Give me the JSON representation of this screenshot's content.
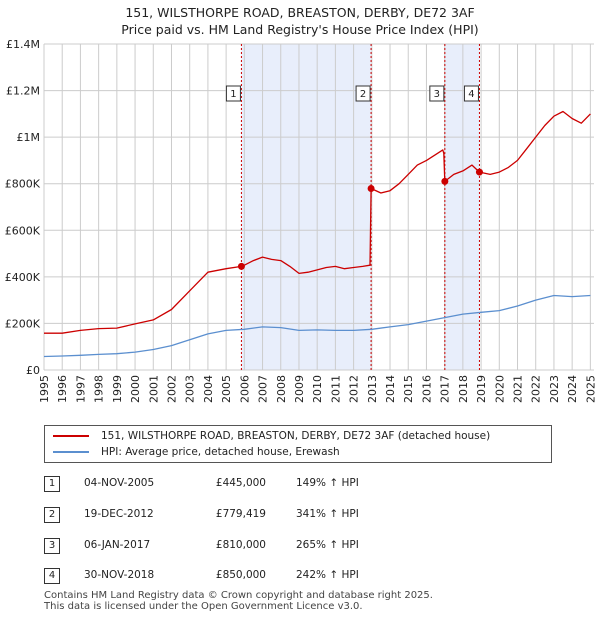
{
  "title": [
    "151, WILSTHORPE ROAD, BREASTON, DERBY, DE72 3AF",
    "Price paid vs. HM Land Registry's House Price Index (HPI)"
  ],
  "colors": {
    "property": "#cc0000",
    "hpi": "#5b8fcf",
    "shade": "#e8eefb",
    "grid": "#cccccc",
    "marker_line": "#cc0000"
  },
  "chart_data": {
    "type": "line",
    "xlim": [
      1995,
      2025.2
    ],
    "ylim": [
      0,
      1400000
    ],
    "yticks": [
      0,
      200000,
      400000,
      600000,
      800000,
      1000000,
      1200000,
      1400000
    ],
    "ytick_labels": [
      "£0",
      "£200K",
      "£400K",
      "£600K",
      "£800K",
      "£1M",
      "£1.2M",
      "£1.4M"
    ],
    "xticks": [
      1995,
      1996,
      1997,
      1998,
      1999,
      2000,
      2001,
      2002,
      2003,
      2004,
      2005,
      2006,
      2007,
      2008,
      2009,
      2010,
      2011,
      2012,
      2013,
      2014,
      2015,
      2016,
      2017,
      2018,
      2019,
      2020,
      2021,
      2022,
      2023,
      2024,
      2025
    ],
    "xtick_labels": [
      "1995",
      "1996",
      "1997",
      "1998",
      "1999",
      "2000",
      "2001",
      "2002",
      "2003",
      "2004",
      "2005",
      "2006",
      "2007",
      "2008",
      "2009",
      "2010",
      "2011",
      "2012",
      "2013",
      "2014",
      "2015",
      "2016",
      "2017",
      "2018",
      "2019",
      "2020",
      "2021",
      "2022",
      "2023",
      "2024",
      "2025"
    ],
    "shaded_ranges": [
      [
        2005.84,
        2012.96
      ],
      [
        2017.01,
        2018.91
      ]
    ],
    "series": [
      {
        "name": "151, WILSTHORPE ROAD, BREASTON, DERBY, DE72 3AF (detached house)",
        "color": "#cc0000",
        "points": [
          [
            1995,
            158000
          ],
          [
            1996,
            158000
          ],
          [
            1997,
            170000
          ],
          [
            1998,
            178000
          ],
          [
            1999,
            180000
          ],
          [
            2000,
            198000
          ],
          [
            2001,
            215000
          ],
          [
            2002,
            260000
          ],
          [
            2003,
            340000
          ],
          [
            2004,
            420000
          ],
          [
            2005,
            435000
          ],
          [
            2005.84,
            445000
          ],
          [
            2006,
            450000
          ],
          [
            2006.5,
            470000
          ],
          [
            2007,
            485000
          ],
          [
            2007.5,
            475000
          ],
          [
            2008,
            470000
          ],
          [
            2008.5,
            445000
          ],
          [
            2009,
            415000
          ],
          [
            2009.5,
            420000
          ],
          [
            2010,
            430000
          ],
          [
            2010.5,
            440000
          ],
          [
            2011,
            445000
          ],
          [
            2011.5,
            435000
          ],
          [
            2012,
            440000
          ],
          [
            2012.5,
            445000
          ],
          [
            2012.9,
            450000
          ],
          [
            2012.96,
            779419
          ],
          [
            2013.5,
            760000
          ],
          [
            2014,
            770000
          ],
          [
            2014.5,
            800000
          ],
          [
            2015,
            840000
          ],
          [
            2015.5,
            880000
          ],
          [
            2016,
            900000
          ],
          [
            2016.6,
            930000
          ],
          [
            2016.9,
            945000
          ],
          [
            2016.95,
            930000
          ],
          [
            2017.01,
            810000
          ],
          [
            2017.5,
            840000
          ],
          [
            2018,
            855000
          ],
          [
            2018.5,
            880000
          ],
          [
            2018.91,
            850000
          ],
          [
            2019.5,
            840000
          ],
          [
            2020,
            850000
          ],
          [
            2020.5,
            870000
          ],
          [
            2021,
            900000
          ],
          [
            2021.5,
            950000
          ],
          [
            2022,
            1000000
          ],
          [
            2022.5,
            1050000
          ],
          [
            2023,
            1090000
          ],
          [
            2023.5,
            1110000
          ],
          [
            2024,
            1080000
          ],
          [
            2024.5,
            1060000
          ],
          [
            2025,
            1100000
          ]
        ]
      },
      {
        "name": "HPI: Average price, detached house, Erewash",
        "color": "#5b8fcf",
        "points": [
          [
            1995,
            58000
          ],
          [
            1996,
            60000
          ],
          [
            1997,
            63000
          ],
          [
            1998,
            67000
          ],
          [
            1999,
            70000
          ],
          [
            2000,
            77000
          ],
          [
            2001,
            88000
          ],
          [
            2002,
            105000
          ],
          [
            2003,
            130000
          ],
          [
            2004,
            155000
          ],
          [
            2005,
            170000
          ],
          [
            2006,
            175000
          ],
          [
            2007,
            185000
          ],
          [
            2008,
            182000
          ],
          [
            2009,
            170000
          ],
          [
            2010,
            172000
          ],
          [
            2011,
            170000
          ],
          [
            2012,
            170000
          ],
          [
            2013,
            175000
          ],
          [
            2014,
            185000
          ],
          [
            2015,
            195000
          ],
          [
            2016,
            210000
          ],
          [
            2017,
            225000
          ],
          [
            2018,
            240000
          ],
          [
            2019,
            248000
          ],
          [
            2020,
            255000
          ],
          [
            2021,
            275000
          ],
          [
            2022,
            300000
          ],
          [
            2023,
            320000
          ],
          [
            2024,
            315000
          ],
          [
            2025,
            320000
          ]
        ]
      }
    ],
    "sales": [
      {
        "label": "1",
        "x": 2005.84,
        "y": 445000
      },
      {
        "label": "2",
        "x": 2012.96,
        "y": 779419
      },
      {
        "label": "3",
        "x": 2017.01,
        "y": 810000
      },
      {
        "label": "4",
        "x": 2018.91,
        "y": 850000
      }
    ]
  },
  "legend": [
    {
      "label": "151, WILSTHORPE ROAD, BREASTON, DERBY, DE72 3AF (detached house)",
      "color": "#cc0000"
    },
    {
      "label": "HPI: Average price, detached house, Erewash",
      "color": "#5b8fcf"
    }
  ],
  "transactions": [
    {
      "num": "1",
      "date": "04-NOV-2005",
      "price": "£445,000",
      "hpi": "149% ↑ HPI"
    },
    {
      "num": "2",
      "date": "19-DEC-2012",
      "price": "£779,419",
      "hpi": "341% ↑ HPI"
    },
    {
      "num": "3",
      "date": "06-JAN-2017",
      "price": "£810,000",
      "hpi": "265% ↑ HPI"
    },
    {
      "num": "4",
      "date": "30-NOV-2018",
      "price": "£850,000",
      "hpi": "242% ↑ HPI"
    }
  ],
  "footer": [
    "Contains HM Land Registry data © Crown copyright and database right 2025.",
    "This data is licensed under the Open Government Licence v3.0."
  ]
}
